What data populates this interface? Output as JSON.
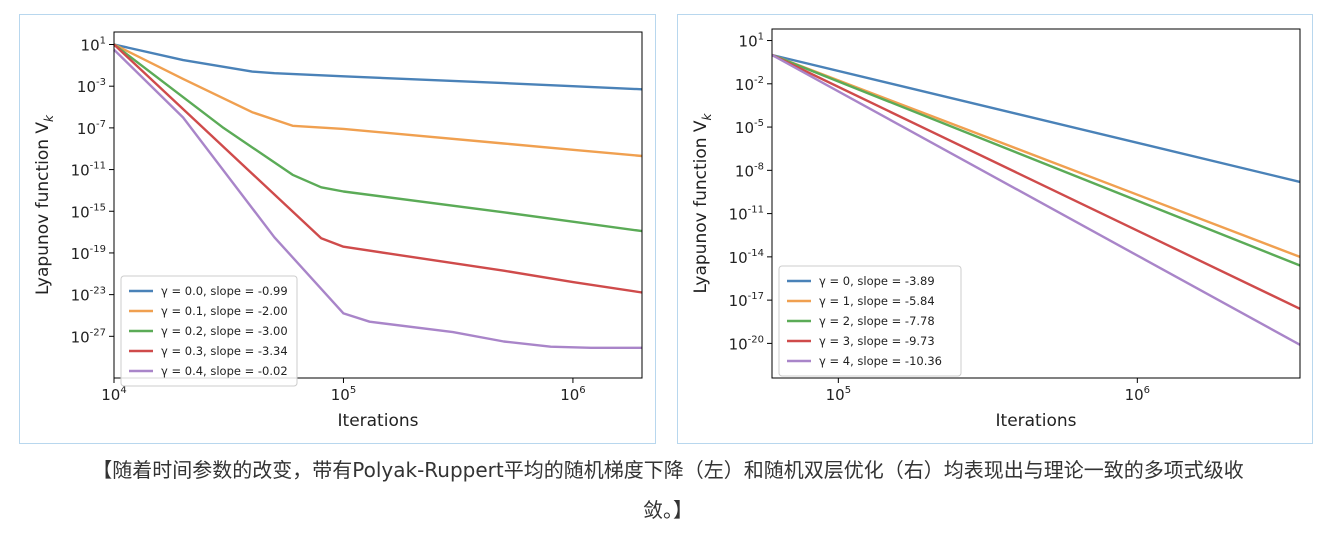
{
  "chart_data": [
    {
      "type": "line",
      "title": "",
      "xlabel": "Iterations",
      "ylabel": "Lyapunov function V_k",
      "ylabel_main": "Lyapunov function V",
      "ylabel_sub": "k",
      "xscale": "log",
      "yscale": "log",
      "xlim": [
        10000,
        2000000
      ],
      "ylim_exp": [
        -31,
        2.2
      ],
      "xticks": [
        {
          "exp": 4,
          "base": "10",
          "sup": "4"
        },
        {
          "exp": 5,
          "base": "10",
          "sup": "5"
        },
        {
          "exp": 6,
          "base": "10",
          "sup": "6"
        }
      ],
      "yticks": [
        {
          "exp": 1,
          "base": "10",
          "sup": "1"
        },
        {
          "exp": -3,
          "base": "10",
          "sup": "-3"
        },
        {
          "exp": -7,
          "base": "10",
          "sup": "-7"
        },
        {
          "exp": -11,
          "base": "10",
          "sup": "-11"
        },
        {
          "exp": -15,
          "base": "10",
          "sup": "-15"
        },
        {
          "exp": -19,
          "base": "10",
          "sup": "-19"
        },
        {
          "exp": -23,
          "base": "10",
          "sup": "-23"
        },
        {
          "exp": -27,
          "base": "10",
          "sup": "-27"
        }
      ],
      "legend_position": "lower-left",
      "grid": false,
      "series": [
        {
          "name": "γ = 0.0, slope = -0.99",
          "color": "#4a82b8",
          "points": [
            [
              10000,
              1.0
            ],
            [
              20000,
              -0.5
            ],
            [
              40000,
              -1.6
            ],
            [
              50000,
              -1.75
            ],
            [
              100000,
              -2.05
            ],
            [
              500000,
              -2.7
            ],
            [
              1000000,
              -3.0
            ],
            [
              2000000,
              -3.3
            ]
          ]
        },
        {
          "name": "γ = 0.1, slope = -2.00",
          "color": "#f0a050",
          "points": [
            [
              10000,
              1.0
            ],
            [
              20000,
              -2.3
            ],
            [
              40000,
              -5.5
            ],
            [
              60000,
              -6.8
            ],
            [
              100000,
              -7.1
            ],
            [
              500000,
              -8.5
            ],
            [
              1000000,
              -9.1
            ],
            [
              2000000,
              -9.7
            ]
          ]
        },
        {
          "name": "γ = 0.2, slope = -3.00",
          "color": "#5bab57",
          "points": [
            [
              10000,
              1.0
            ],
            [
              30000,
              -7.0
            ],
            [
              60000,
              -11.5
            ],
            [
              80000,
              -12.7
            ],
            [
              100000,
              -13.1
            ],
            [
              500000,
              -15.1
            ],
            [
              1000000,
              -16.0
            ],
            [
              2000000,
              -16.9
            ]
          ]
        },
        {
          "name": "γ = 0.3, slope = -3.34",
          "color": "#cf4b4b",
          "points": [
            [
              10000,
              1.0
            ],
            [
              40000,
              -11.4
            ],
            [
              80000,
              -17.6
            ],
            [
              100000,
              -18.4
            ],
            [
              200000,
              -19.4
            ],
            [
              500000,
              -20.7
            ],
            [
              1000000,
              -21.8
            ],
            [
              2000000,
              -22.8
            ]
          ]
        },
        {
          "name": "γ = 0.4, slope = -0.02",
          "color": "#a985c9",
          "points": [
            [
              10000,
              0.5
            ],
            [
              20000,
              -6.0
            ],
            [
              50000,
              -17.5
            ],
            [
              100000,
              -24.8
            ],
            [
              130000,
              -25.6
            ],
            [
              300000,
              -26.6
            ],
            [
              500000,
              -27.5
            ],
            [
              800000,
              -28.0
            ],
            [
              1200000,
              -28.1
            ],
            [
              2000000,
              -28.1
            ]
          ]
        }
      ]
    },
    {
      "type": "line",
      "title": "",
      "xlabel": "Iterations",
      "ylabel": "Lyapunov function V_k",
      "ylabel_main": "Lyapunov function V",
      "ylabel_sub": "k",
      "xscale": "log",
      "yscale": "log",
      "xlim": [
        60000,
        3500000
      ],
      "ylim_exp": [
        -22.4,
        1.8
      ],
      "xticks": [
        {
          "exp": 5,
          "base": "10",
          "sup": "5"
        },
        {
          "exp": 6,
          "base": "10",
          "sup": "6"
        }
      ],
      "yticks": [
        {
          "exp": 1,
          "base": "10",
          "sup": "1"
        },
        {
          "exp": -2,
          "base": "10",
          "sup": "-2"
        },
        {
          "exp": -5,
          "base": "10",
          "sup": "-5"
        },
        {
          "exp": -8,
          "base": "10",
          "sup": "-8"
        },
        {
          "exp": -11,
          "base": "10",
          "sup": "-11"
        },
        {
          "exp": -14,
          "base": "10",
          "sup": "-14"
        },
        {
          "exp": -17,
          "base": "10",
          "sup": "-17"
        },
        {
          "exp": -20,
          "base": "10",
          "sup": "-20"
        }
      ],
      "legend_position": "lower-left",
      "grid": false,
      "series": [
        {
          "name": "γ = 0, slope = -3.89",
          "color": "#4a82b8",
          "points": [
            [
              60000,
              0.0
            ],
            [
              3500000,
              -8.8
            ]
          ]
        },
        {
          "name": "γ = 1, slope = -5.84",
          "color": "#f0a050",
          "points": [
            [
              60000,
              0.0
            ],
            [
              3500000,
              -14.0
            ]
          ]
        },
        {
          "name": "γ = 2, slope = -7.78",
          "color": "#5bab57",
          "points": [
            [
              60000,
              0.0
            ],
            [
              3500000,
              -14.6
            ]
          ]
        },
        {
          "name": "γ = 3, slope = -9.73",
          "color": "#cf4b4b",
          "points": [
            [
              60000,
              0.0
            ],
            [
              3500000,
              -17.6
            ]
          ]
        },
        {
          "name": "γ = 4, slope = -10.36",
          "color": "#a985c9",
          "points": [
            [
              60000,
              0.0
            ],
            [
              3500000,
              -20.1
            ]
          ]
        }
      ]
    }
  ],
  "caption": "【随着时间参数的改变，带有Polyak-Ruppert平均的随机梯度下降（左）和随机双层优化（右）均表现出与理论一致的多项式级收敛。】"
}
